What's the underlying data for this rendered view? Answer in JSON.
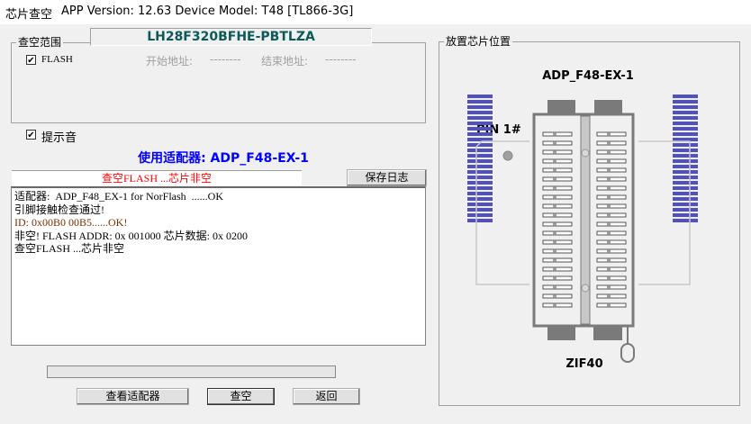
{
  "window": {
    "title": "芯片查空",
    "info": "APP Version: 12.63 Device Model: T48 [TL866-3G]"
  },
  "chip_name": "LH28F320BFHE-PBTLZA",
  "range": {
    "group_label": "查空范围",
    "flash_label": "FLASH",
    "flash_checked": true,
    "start_label": "开始地址:",
    "start_value": "--------",
    "end_label": "结束地址:",
    "end_value": "--------"
  },
  "beep": {
    "label": "提示音",
    "checked": true
  },
  "adapter_text": "使用适配器: ADP_F48-EX-1",
  "status_text": "查空FLASH ...芯片非空",
  "save_log_label": "保存日志",
  "log": [
    "适配器:  ADP_F48_EX-1 for NorFlash  ......OK",
    "引脚接触检查通过!",
    "ID: 0x00B0 00B5......OK!",
    "非空! FLASH ADDR: 0x 001000 芯片数据: 0x 0200",
    "查空FLASH ...芯片非空"
  ],
  "progress": 0,
  "buttons": {
    "view_adapter": "查看适配器",
    "blank_check": "查空",
    "back": "返回"
  },
  "placement": {
    "group_label": "放置芯片位置",
    "adapter": "ADP_F48-EX-1",
    "pin1": "PIN 1#",
    "socket": "ZIF40"
  },
  "colors": {
    "chip_name": "#0b5a5a",
    "adapter": "#0000ff",
    "status": "#ff0000",
    "pins": "#5050c0"
  }
}
